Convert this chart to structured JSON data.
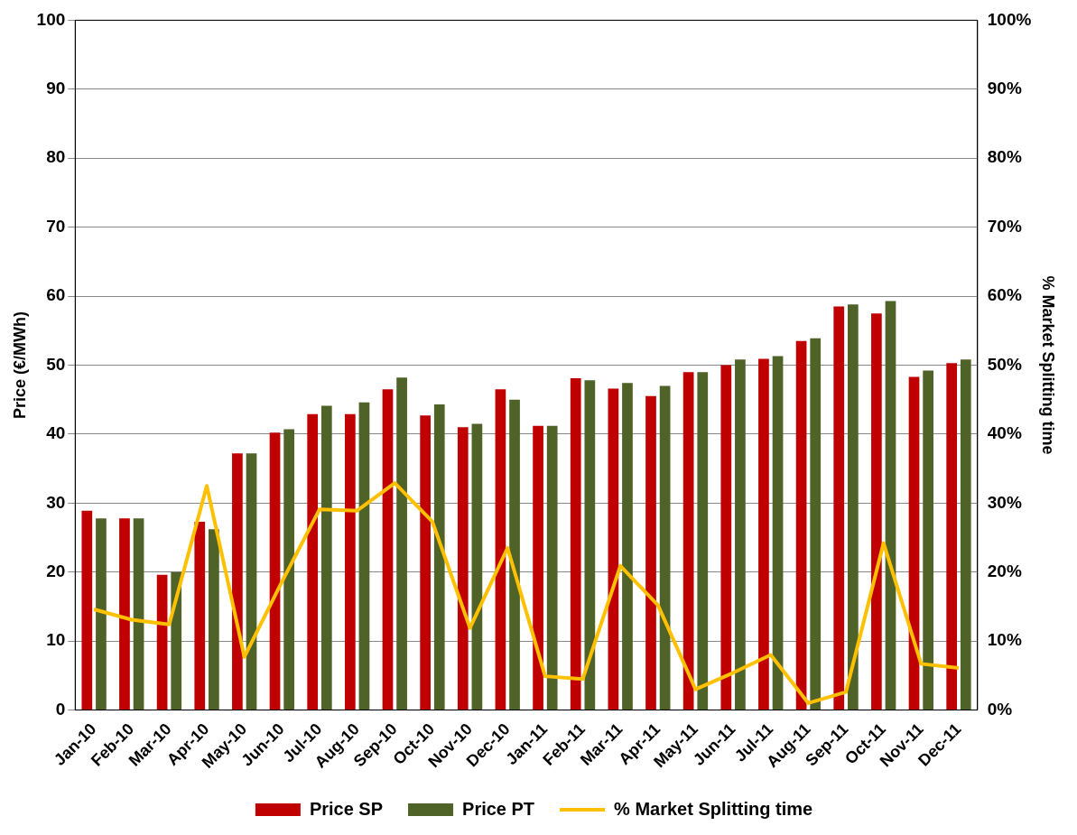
{
  "chart_data": {
    "type": "bar",
    "ylabel": "Price (€/MWh)",
    "y2label": "% Market Splitting time",
    "categories": [
      "Jan-10",
      "Feb-10",
      "Mar-10",
      "Apr-10",
      "May-10",
      "Jun-10",
      "Jul-10",
      "Aug-10",
      "Sep-10",
      "Oct-10",
      "Nov-10",
      "Dec-10",
      "Jan-11",
      "Feb-11",
      "Mar-11",
      "Apr-11",
      "May-11",
      "Jun-11",
      "Jul-11",
      "Aug-11",
      "Sep-11",
      "Oct-11",
      "Nov-11",
      "Dec-11"
    ],
    "series": [
      {
        "name": "Price SP",
        "color": "#c00000",
        "values": [
          28.9,
          27.8,
          19.6,
          27.3,
          37.2,
          40.2,
          42.9,
          42.9,
          46.5,
          42.7,
          41.0,
          46.5,
          41.2,
          48.1,
          46.6,
          45.5,
          49.0,
          50.0,
          50.9,
          53.5,
          58.5,
          57.5,
          48.3,
          50.3
        ]
      },
      {
        "name": "Price PT",
        "color": "#4f6228",
        "values": [
          27.8,
          27.8,
          20.0,
          26.2,
          37.2,
          40.7,
          44.1,
          44.6,
          48.2,
          44.3,
          41.5,
          45.0,
          41.2,
          47.8,
          47.4,
          47.0,
          49.0,
          50.8,
          51.3,
          53.9,
          58.8,
          59.3,
          49.2,
          50.8
        ]
      },
      {
        "name": "% Market Splitting time",
        "type": "line",
        "axis": "y2",
        "color": "#ffc000",
        "values": [
          14.6,
          13.1,
          12.4,
          32.5,
          7.7,
          18.6,
          29.1,
          28.9,
          32.9,
          27.3,
          11.9,
          23.5,
          4.9,
          4.5,
          20.9,
          15.2,
          3.0,
          5.4,
          8.0,
          1.0,
          2.6,
          24.2,
          6.7,
          6.1
        ]
      }
    ],
    "ylim": [
      0,
      100
    ],
    "yticks": [
      0,
      10,
      20,
      30,
      40,
      50,
      60,
      70,
      80,
      90,
      100
    ],
    "y2lim": [
      0,
      100
    ],
    "y2ticks": [
      {
        "value": 0,
        "label": "0%"
      },
      {
        "value": 10,
        "label": "10%"
      },
      {
        "value": 20,
        "label": "20%"
      },
      {
        "value": 30,
        "label": "30%"
      },
      {
        "value": 40,
        "label": "40%"
      },
      {
        "value": 50,
        "label": "50%"
      },
      {
        "value": 60,
        "label": "60%"
      },
      {
        "value": 70,
        "label": "70%"
      },
      {
        "value": 80,
        "label": "80%"
      },
      {
        "value": 90,
        "label": "90%"
      },
      {
        "value": 100,
        "label": "100%"
      }
    ],
    "grid": "y",
    "legend": "bottom",
    "marker": "none",
    "line_style": "solid"
  }
}
